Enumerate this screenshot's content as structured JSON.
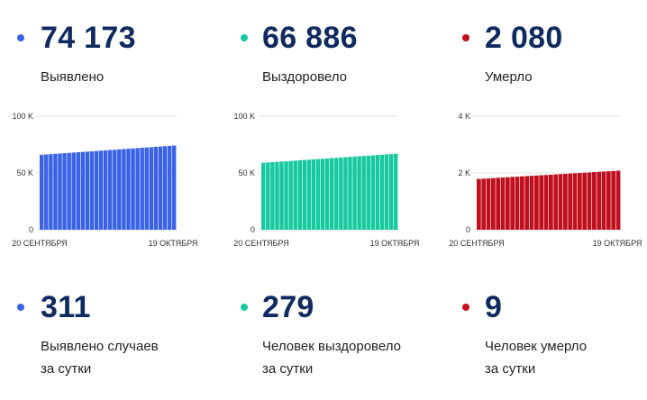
{
  "panels": [
    {
      "color": "#3b63e8",
      "total": "74 173",
      "total_label": "Выявлено",
      "daily": "311",
      "daily_label_1": "Выявлено случаев",
      "daily_label_2": "за сутки"
    },
    {
      "color": "#17c9a0",
      "total": "66 886",
      "total_label": "Выздоровело",
      "daily": "279",
      "daily_label_1": "Человек выздоровело",
      "daily_label_2": "за сутки"
    },
    {
      "color": "#c0101e",
      "total": "2 080",
      "total_label": "Умерло",
      "daily": "9",
      "daily_label_1": "Человек умерло",
      "daily_label_2": "за сутки"
    }
  ],
  "chart_data": [
    {
      "type": "bar",
      "x_start_label": "20 СЕНТЯБРЯ",
      "x_end_label": "19 ОКТЯБРЯ",
      "yticks": [
        0,
        50000,
        100000
      ],
      "ytick_labels": [
        "0",
        "50 K",
        "100 K"
      ],
      "ylim": [
        0,
        100000
      ],
      "color": "#3b63e8",
      "start_value": 66000,
      "end_value": 74173,
      "bar_count": 30
    },
    {
      "type": "bar",
      "x_start_label": "20 СЕНТЯБРЯ",
      "x_end_label": "19 ОКТЯБРЯ",
      "yticks": [
        0,
        50000,
        100000
      ],
      "ytick_labels": [
        "0",
        "50 K",
        "100 K"
      ],
      "ylim": [
        0,
        100000
      ],
      "color": "#17c9a0",
      "start_value": 59000,
      "end_value": 66886,
      "bar_count": 30
    },
    {
      "type": "bar",
      "x_start_label": "20 СЕНТЯБРЯ",
      "x_end_label": "19 ОКТЯБРЯ",
      "yticks": [
        0,
        2000,
        4000
      ],
      "ytick_labels": [
        "0",
        "2 K",
        "4 K"
      ],
      "ylim": [
        0,
        4000
      ],
      "color": "#c0101e",
      "start_value": 1790,
      "end_value": 2080,
      "bar_count": 30
    }
  ]
}
